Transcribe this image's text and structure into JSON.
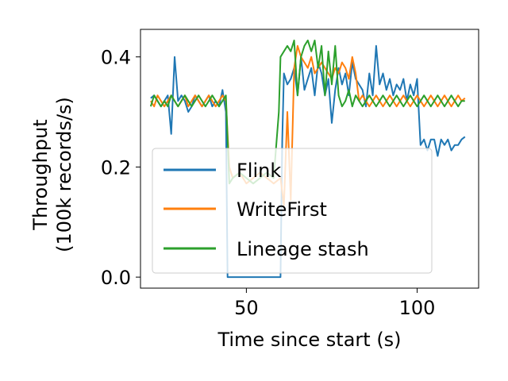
{
  "chart_data": {
    "type": "line",
    "xlabel": "Time since start (s)",
    "ylabel_lines": [
      "Throughput",
      "(100k records/s)"
    ],
    "xlim": [
      19,
      118
    ],
    "ylim": [
      -0.02,
      0.45
    ],
    "xticks": [
      50,
      100
    ],
    "yticks": [
      0.0,
      0.2,
      0.4
    ],
    "ytick_labels": [
      "0.0",
      "0.2",
      "0.4"
    ],
    "xtick_labels": [
      "50",
      "100"
    ],
    "grid": false,
    "legend_position": "lower-left",
    "series": [
      {
        "name": "Flink",
        "color": "#1f77b4",
        "x": [
          22,
          23,
          24,
          25,
          26,
          27,
          28,
          29,
          30,
          31,
          32,
          33,
          34,
          35,
          36,
          37,
          38,
          39,
          40,
          41,
          42,
          43,
          44,
          44.5,
          46,
          48,
          50,
          52,
          54,
          56,
          58,
          60,
          60.5,
          61,
          62,
          63,
          64,
          65,
          66,
          67,
          68,
          69,
          70,
          71,
          72,
          73,
          74,
          75,
          76,
          77,
          78,
          79,
          80,
          81,
          82,
          83,
          84,
          85,
          86,
          87,
          88,
          89,
          90,
          91,
          92,
          93,
          94,
          95,
          96,
          97,
          98,
          99,
          100,
          101,
          102,
          103,
          104,
          105,
          106,
          107,
          108,
          109,
          110,
          111,
          112,
          113,
          114
        ],
        "y": [
          0.325,
          0.33,
          0.32,
          0.31,
          0.32,
          0.33,
          0.26,
          0.4,
          0.32,
          0.33,
          0.32,
          0.3,
          0.31,
          0.33,
          0.32,
          0.31,
          0.32,
          0.33,
          0.31,
          0.32,
          0.31,
          0.34,
          0.3,
          0.0,
          0.0,
          0.0,
          0.0,
          0.0,
          0.0,
          0.0,
          0.0,
          0.0,
          0.25,
          0.37,
          0.35,
          0.36,
          0.38,
          0.33,
          0.4,
          0.34,
          0.36,
          0.38,
          0.33,
          0.39,
          0.37,
          0.33,
          0.36,
          0.28,
          0.34,
          0.38,
          0.35,
          0.37,
          0.33,
          0.39,
          0.36,
          0.35,
          0.34,
          0.31,
          0.37,
          0.33,
          0.42,
          0.35,
          0.37,
          0.34,
          0.36,
          0.33,
          0.35,
          0.34,
          0.36,
          0.32,
          0.35,
          0.33,
          0.36,
          0.24,
          0.25,
          0.23,
          0.25,
          0.25,
          0.22,
          0.25,
          0.24,
          0.25,
          0.23,
          0.24,
          0.24,
          0.25,
          0.255
        ]
      },
      {
        "name": "WriteFirst",
        "color": "#ff7f0e",
        "x": [
          22,
          23,
          24,
          25,
          26,
          27,
          28,
          29,
          30,
          31,
          32,
          33,
          34,
          35,
          36,
          37,
          38,
          39,
          40,
          41,
          42,
          43,
          44,
          45,
          46,
          48,
          50,
          52,
          54,
          56,
          58,
          60,
          61,
          62,
          63,
          64,
          65,
          66,
          67,
          68,
          69,
          70,
          71,
          72,
          73,
          74,
          75,
          76,
          77,
          78,
          79,
          80,
          81,
          82,
          83,
          84,
          85,
          86,
          87,
          88,
          89,
          90,
          91,
          92,
          93,
          94,
          95,
          96,
          97,
          98,
          99,
          100,
          101,
          102,
          103,
          104,
          105,
          106,
          107,
          108,
          109,
          110,
          111,
          112,
          113,
          114
        ],
        "y": [
          0.32,
          0.31,
          0.33,
          0.32,
          0.31,
          0.32,
          0.33,
          0.32,
          0.31,
          0.32,
          0.33,
          0.31,
          0.32,
          0.33,
          0.32,
          0.31,
          0.32,
          0.33,
          0.32,
          0.31,
          0.32,
          0.33,
          0.32,
          0.2,
          0.18,
          0.19,
          0.17,
          0.18,
          0.19,
          0.18,
          0.17,
          0.18,
          0.13,
          0.3,
          0.14,
          0.38,
          0.42,
          0.4,
          0.39,
          0.38,
          0.4,
          0.37,
          0.38,
          0.39,
          0.38,
          0.37,
          0.36,
          0.38,
          0.37,
          0.39,
          0.38,
          0.36,
          0.4,
          0.37,
          0.32,
          0.33,
          0.32,
          0.31,
          0.32,
          0.33,
          0.32,
          0.31,
          0.32,
          0.33,
          0.32,
          0.31,
          0.32,
          0.33,
          0.32,
          0.31,
          0.32,
          0.33,
          0.32,
          0.31,
          0.32,
          0.33,
          0.32,
          0.31,
          0.32,
          0.33,
          0.32,
          0.31,
          0.32,
          0.33,
          0.32,
          0.325
        ]
      },
      {
        "name": "Lineage stash",
        "color": "#2ca02c",
        "x": [
          22,
          23,
          24,
          25,
          26,
          27,
          28,
          29,
          30,
          31,
          32,
          33,
          34,
          35,
          36,
          37,
          38,
          39,
          40,
          41,
          42,
          43,
          44,
          45,
          46,
          48,
          50,
          52,
          54,
          56,
          58,
          59.5,
          60,
          61,
          62,
          63,
          64,
          65,
          66,
          67,
          68,
          69,
          70,
          71,
          72,
          73,
          74,
          75,
          76,
          77,
          78,
          79,
          80,
          81,
          82,
          83,
          84,
          85,
          86,
          87,
          88,
          89,
          90,
          91,
          92,
          93,
          94,
          95,
          96,
          97,
          98,
          99,
          100,
          101,
          102,
          103,
          104,
          105,
          106,
          107,
          108,
          109,
          110,
          111,
          112,
          113,
          114
        ],
        "y": [
          0.31,
          0.33,
          0.32,
          0.31,
          0.32,
          0.31,
          0.33,
          0.32,
          0.31,
          0.32,
          0.33,
          0.32,
          0.31,
          0.32,
          0.33,
          0.32,
          0.31,
          0.32,
          0.33,
          0.32,
          0.31,
          0.32,
          0.33,
          0.17,
          0.18,
          0.19,
          0.18,
          0.17,
          0.18,
          0.19,
          0.18,
          0.3,
          0.4,
          0.41,
          0.42,
          0.41,
          0.43,
          0.33,
          0.4,
          0.42,
          0.43,
          0.41,
          0.43,
          0.38,
          0.42,
          0.33,
          0.41,
          0.35,
          0.42,
          0.33,
          0.31,
          0.32,
          0.34,
          0.31,
          0.33,
          0.32,
          0.31,
          0.32,
          0.33,
          0.32,
          0.31,
          0.32,
          0.33,
          0.32,
          0.31,
          0.32,
          0.33,
          0.32,
          0.31,
          0.32,
          0.33,
          0.32,
          0.31,
          0.32,
          0.33,
          0.32,
          0.31,
          0.32,
          0.33,
          0.32,
          0.31,
          0.32,
          0.33,
          0.32,
          0.31,
          0.32,
          0.32
        ]
      }
    ]
  }
}
